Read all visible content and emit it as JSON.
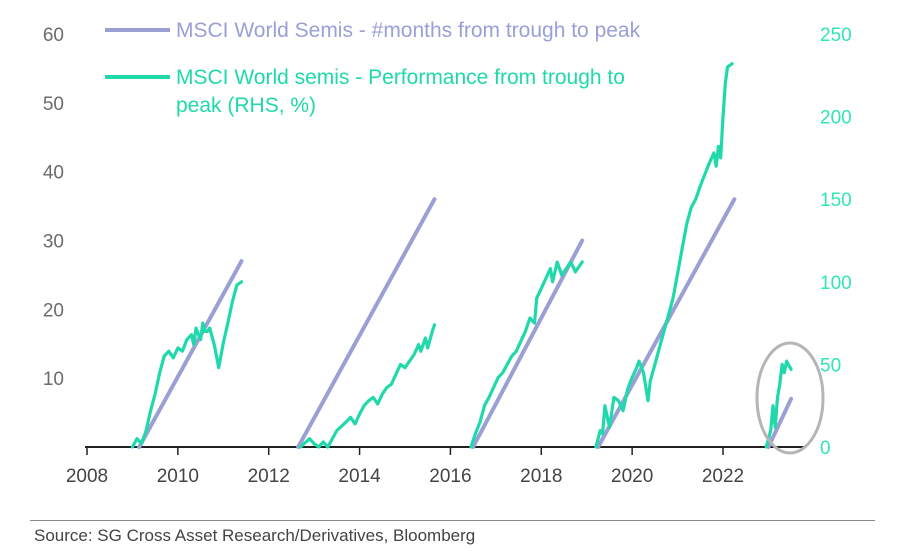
{
  "chart_data": {
    "type": "line",
    "legend": [
      {
        "label": "MSCI World Semis - #months from trough to peak",
        "color": "#9aa0d6"
      },
      {
        "label": "MSCI World semis - Performance from trough to",
        "label_line2": "peak (RHS, %)",
        "color": "#1fd9aa"
      }
    ],
    "x_ticks": [
      "2008",
      "2010",
      "2012",
      "2014",
      "2016",
      "2018",
      "2020",
      "2022"
    ],
    "y_left_ticks": [
      "10",
      "20",
      "30",
      "40",
      "50",
      "60"
    ],
    "y_right_ticks": [
      "0",
      "50",
      "100",
      "150",
      "200",
      "250"
    ],
    "xlim": [
      2008,
      2024.3
    ],
    "ylim_left": [
      0,
      60
    ],
    "ylim_right": [
      0,
      250
    ],
    "grid": false,
    "series": [
      {
        "name": "MSCI World Semis - #months from trough to peak",
        "axis": "left",
        "color": "#9aa0d6",
        "segments": [
          [
            [
              2009.15,
              0
            ],
            [
              2011.4,
              27
            ]
          ],
          [
            [
              2012.65,
              0
            ],
            [
              2015.65,
              36
            ]
          ],
          [
            [
              2016.5,
              0
            ],
            [
              2018.9,
              30
            ]
          ],
          [
            [
              2019.25,
              0
            ],
            [
              2022.25,
              36
            ]
          ],
          [
            [
              2023.0,
              0
            ],
            [
              2023.5,
              7
            ]
          ]
        ]
      },
      {
        "name": "MSCI World semis - Performance from trough to peak (RHS, %)",
        "axis": "right",
        "color": "#1fd9aa",
        "segments": [
          [
            [
              2009.0,
              0
            ],
            [
              2009.1,
              5
            ],
            [
              2009.2,
              2
            ],
            [
              2009.3,
              10
            ],
            [
              2009.4,
              22
            ],
            [
              2009.5,
              32
            ],
            [
              2009.6,
              45
            ],
            [
              2009.7,
              55
            ],
            [
              2009.8,
              58
            ],
            [
              2009.9,
              54
            ],
            [
              2010.0,
              60
            ],
            [
              2010.1,
              58
            ],
            [
              2010.2,
              65
            ],
            [
              2010.3,
              68
            ],
            [
              2010.35,
              62
            ],
            [
              2010.4,
              72
            ],
            [
              2010.5,
              65
            ],
            [
              2010.55,
              75
            ],
            [
              2010.6,
              70
            ],
            [
              2010.65,
              70
            ],
            [
              2010.7,
              72
            ],
            [
              2010.8,
              62
            ],
            [
              2010.85,
              55
            ],
            [
              2010.9,
              48
            ],
            [
              2011.0,
              63
            ],
            [
              2011.1,
              75
            ],
            [
              2011.2,
              88
            ],
            [
              2011.3,
              98
            ],
            [
              2011.4,
              100
            ]
          ],
          [
            [
              2012.7,
              0
            ],
            [
              2012.9,
              5
            ],
            [
              2013.0,
              2
            ],
            [
              2013.1,
              0
            ],
            [
              2013.2,
              3
            ],
            [
              2013.3,
              0
            ],
            [
              2013.5,
              10
            ],
            [
              2013.7,
              15
            ],
            [
              2013.8,
              18
            ],
            [
              2013.9,
              14
            ],
            [
              2014.0,
              20
            ],
            [
              2014.1,
              25
            ],
            [
              2014.2,
              28
            ],
            [
              2014.3,
              30
            ],
            [
              2014.4,
              26
            ],
            [
              2014.5,
              32
            ],
            [
              2014.6,
              36
            ],
            [
              2014.7,
              38
            ],
            [
              2014.8,
              44
            ],
            [
              2014.9,
              50
            ],
            [
              2015.0,
              48
            ],
            [
              2015.1,
              52
            ],
            [
              2015.2,
              56
            ],
            [
              2015.3,
              62
            ],
            [
              2015.35,
              58
            ],
            [
              2015.45,
              66
            ],
            [
              2015.5,
              60
            ],
            [
              2015.6,
              70
            ],
            [
              2015.65,
              74
            ]
          ],
          [
            [
              2016.45,
              0
            ],
            [
              2016.55,
              8
            ],
            [
              2016.65,
              15
            ],
            [
              2016.75,
              25
            ],
            [
              2016.85,
              30
            ],
            [
              2016.95,
              36
            ],
            [
              2017.05,
              42
            ],
            [
              2017.15,
              45
            ],
            [
              2017.25,
              50
            ],
            [
              2017.35,
              55
            ],
            [
              2017.45,
              58
            ],
            [
              2017.55,
              64
            ],
            [
              2017.65,
              70
            ],
            [
              2017.75,
              78
            ],
            [
              2017.85,
              75
            ],
            [
              2017.9,
              90
            ],
            [
              2018.0,
              96
            ],
            [
              2018.1,
              102
            ],
            [
              2018.2,
              108
            ],
            [
              2018.25,
              100
            ],
            [
              2018.35,
              112
            ],
            [
              2018.45,
              104
            ],
            [
              2018.55,
              108
            ],
            [
              2018.65,
              112
            ],
            [
              2018.75,
              106
            ],
            [
              2018.85,
              110
            ],
            [
              2018.9,
              112
            ]
          ],
          [
            [
              2019.2,
              0
            ],
            [
              2019.3,
              10
            ],
            [
              2019.35,
              8
            ],
            [
              2019.4,
              25
            ],
            [
              2019.5,
              12
            ],
            [
              2019.6,
              30
            ],
            [
              2019.7,
              28
            ],
            [
              2019.8,
              22
            ],
            [
              2019.9,
              35
            ],
            [
              2020.0,
              42
            ],
            [
              2020.1,
              48
            ],
            [
              2020.15,
              52
            ],
            [
              2020.25,
              45
            ],
            [
              2020.35,
              28
            ],
            [
              2020.4,
              40
            ],
            [
              2020.5,
              50
            ],
            [
              2020.6,
              60
            ],
            [
              2020.7,
              70
            ],
            [
              2020.8,
              80
            ],
            [
              2020.9,
              90
            ],
            [
              2021.0,
              105
            ],
            [
              2021.1,
              120
            ],
            [
              2021.2,
              135
            ],
            [
              2021.3,
              145
            ],
            [
              2021.4,
              150
            ],
            [
              2021.5,
              158
            ],
            [
              2021.6,
              165
            ],
            [
              2021.7,
              172
            ],
            [
              2021.8,
              178
            ],
            [
              2021.85,
              170
            ],
            [
              2021.9,
              182
            ],
            [
              2021.95,
              175
            ],
            [
              2022.0,
              200
            ],
            [
              2022.05,
              220
            ],
            [
              2022.1,
              230
            ],
            [
              2022.2,
              232
            ]
          ],
          [
            [
              2022.95,
              0
            ],
            [
              2023.05,
              10
            ],
            [
              2023.1,
              25
            ],
            [
              2023.15,
              12
            ],
            [
              2023.2,
              30
            ],
            [
              2023.25,
              38
            ],
            [
              2023.3,
              50
            ],
            [
              2023.35,
              45
            ],
            [
              2023.4,
              52
            ],
            [
              2023.5,
              47
            ]
          ]
        ]
      }
    ]
  },
  "source": "Source: SG Cross Asset Research/Derivatives, Bloomberg"
}
